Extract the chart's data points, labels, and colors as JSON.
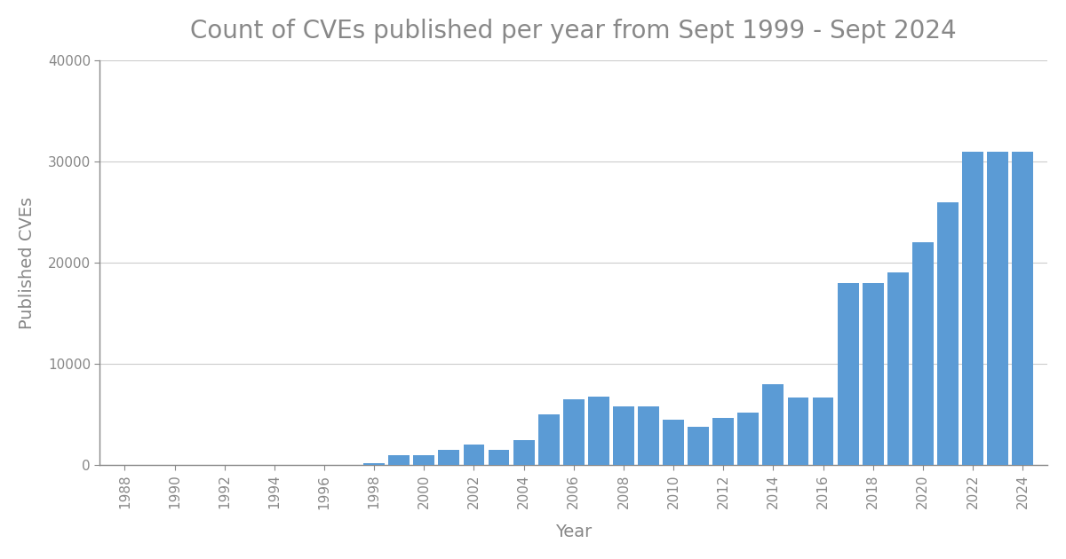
{
  "title": "Count of CVEs published per year from Sept 1999 - Sept 2024",
  "xlabel": "Year",
  "ylabel": "Published CVEs",
  "bar_color": "#5B9BD5",
  "background_color": "#ffffff",
  "title_color": "#888888",
  "axis_color": "#888888",
  "grid_color": "#cccccc",
  "years": [
    1988,
    1989,
    1990,
    1991,
    1992,
    1993,
    1994,
    1995,
    1996,
    1997,
    1998,
    1999,
    2000,
    2001,
    2002,
    2003,
    2004,
    2005,
    2006,
    2007,
    2008,
    2009,
    2010,
    2011,
    2012,
    2013,
    2014,
    2015,
    2016,
    2017,
    2018,
    2019,
    2020,
    2021,
    2022,
    2023,
    2024
  ],
  "values": [
    0,
    0,
    0,
    0,
    0,
    0,
    0,
    0,
    0,
    0,
    200,
    1000,
    1000,
    1500,
    2000,
    1500,
    2500,
    5000,
    6500,
    6800,
    5800,
    5800,
    4500,
    3800,
    4700,
    5200,
    8000,
    6700,
    6700,
    18000,
    18000,
    19000,
    22000,
    26000,
    31000,
    31000,
    31000
  ],
  "ylim": [
    0,
    40000
  ],
  "yticks": [
    0,
    10000,
    20000,
    30000,
    40000
  ],
  "xtick_step": 2,
  "title_fontsize": 20,
  "label_fontsize": 14,
  "tick_fontsize": 11
}
